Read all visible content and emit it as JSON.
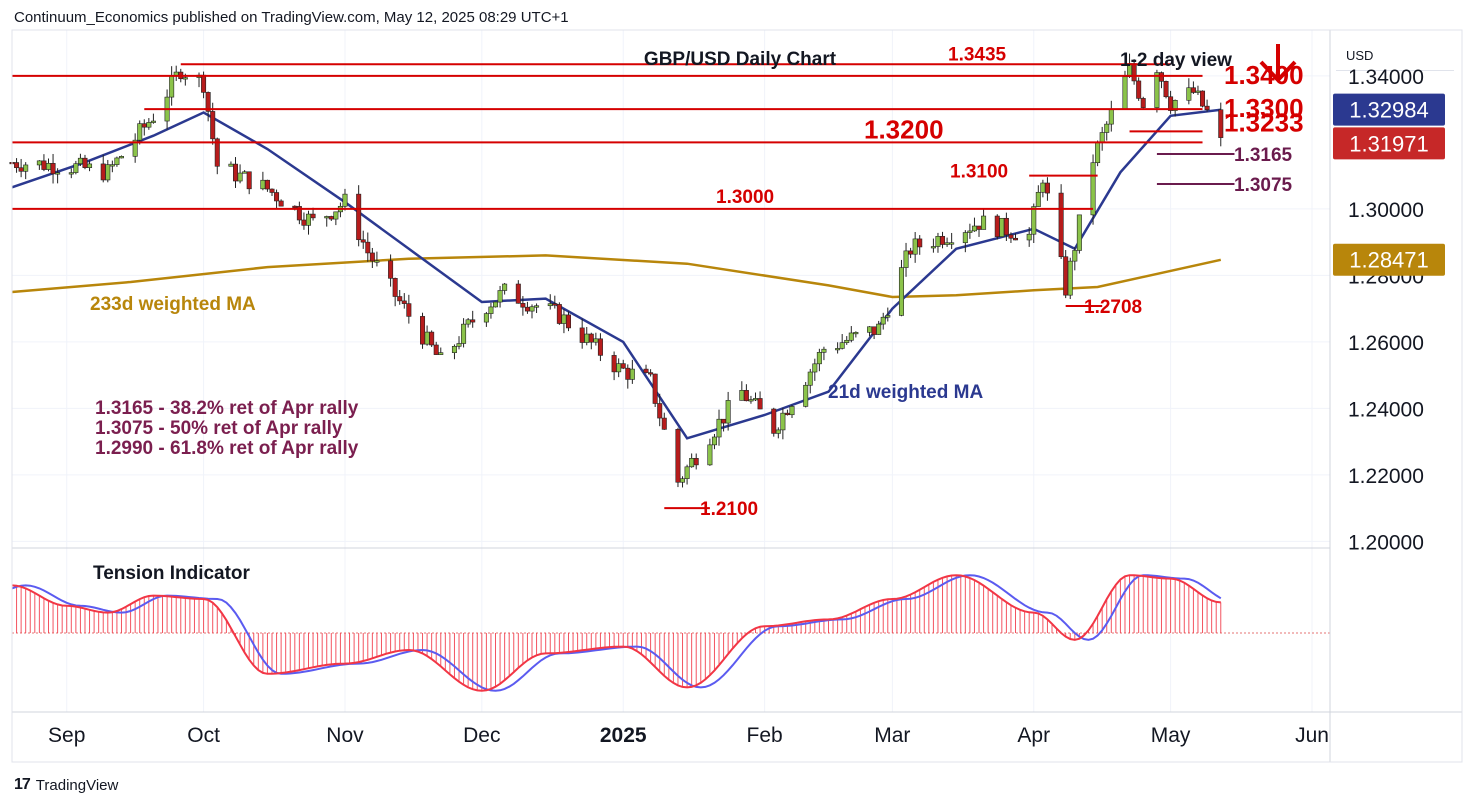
{
  "header": {
    "publisher": "Continuum_Economics published on TradingView.com, May 12, 2025 08:29 UTC+1"
  },
  "footer": {
    "brand": "TradingView"
  },
  "colors": {
    "up": "#4f7a2a",
    "down": "#b71c1c",
    "resistance": "#d50000",
    "ma21": "#2b3990",
    "ma233": "#b8860b",
    "annotation": "#7b1f4f",
    "tension_red": "#f23645",
    "tension_blue": "#5b5bf0"
  },
  "chart_data": {
    "type": "candlestick",
    "title": "GBP/USD Daily Chart",
    "subtitle": "1-2 day view",
    "direction_icon": "down-arrow-icon",
    "currency": "USD",
    "y_ticks": [
      "1.34000",
      "1.30000",
      "1.28000",
      "1.26000",
      "1.24000",
      "1.22000",
      "1.20000"
    ],
    "y_tick_values": [
      1.34,
      1.3,
      1.28,
      1.26,
      1.24,
      1.22,
      1.2
    ],
    "ylim": [
      1.198,
      1.352
    ],
    "x_ticks": [
      "Sep",
      "Oct",
      "Nov",
      "Dec",
      "2025",
      "Feb",
      "Mar",
      "Apr",
      "May",
      "Jun"
    ],
    "x_tick_dates": [
      "2024-09-01",
      "2024-10-01",
      "2024-11-01",
      "2024-12-01",
      "2025-01-01",
      "2025-02-01",
      "2025-03-01",
      "2025-04-01",
      "2025-05-01",
      "2025-06-01"
    ],
    "price_tags": [
      {
        "label": "1.32984",
        "value": 1.32984,
        "bg": "#2b3990"
      },
      {
        "label": "1.31971",
        "value": 1.31971,
        "bg": "#c62828"
      },
      {
        "label": "1.28471",
        "value": 1.28471,
        "bg": "#b8860b"
      }
    ],
    "levels": [
      {
        "label": "1.3435",
        "value": 1.3435,
        "from": "2024-09-26",
        "to": "2025-05-01"
      },
      {
        "label": "1.3400",
        "value": 1.34,
        "from": "2024-08-20",
        "to": "2025-05-08"
      },
      {
        "label": "1.3300",
        "value": 1.33,
        "from": "2024-09-18",
        "to": "2025-05-08"
      },
      {
        "label": "1.3233",
        "value": 1.3233,
        "from": "2025-04-22",
        "to": "2025-05-08"
      },
      {
        "label": "1.3200",
        "value": 1.32,
        "from": "2024-08-20",
        "to": "2025-05-08"
      },
      {
        "label": "1.3165",
        "value": 1.3165,
        "from": "2025-04-28",
        "to": "2025-05-15"
      },
      {
        "label": "1.3100",
        "value": 1.31,
        "from": "2025-03-31",
        "to": "2025-04-15"
      },
      {
        "label": "1.3075",
        "value": 1.3075,
        "from": "2025-04-28",
        "to": "2025-05-15"
      },
      {
        "label": "1.3000",
        "value": 1.3,
        "from": "2024-08-20",
        "to": "2025-04-14"
      },
      {
        "label": "1.2708",
        "value": 1.2708,
        "from": "2025-04-08",
        "to": "2025-04-16"
      },
      {
        "label": "1.2100",
        "value": 1.21,
        "from": "2025-01-10",
        "to": "2025-01-20"
      }
    ],
    "notes": [
      "1.3165 - 38.2% ret of Apr rally",
      "1.3075 - 50% ret of Apr rally",
      "1.2990 - 61.8% ret of Apr rally"
    ],
    "ma233_label": "233d weighted MA",
    "ma21_label": "21d weighted MA",
    "ma233": [
      [
        "2024-08-20",
        1.275
      ],
      [
        "2024-09-15",
        1.278
      ],
      [
        "2024-10-15",
        1.2825
      ],
      [
        "2024-11-15",
        1.285
      ],
      [
        "2024-12-15",
        1.286
      ],
      [
        "2025-01-15",
        1.2835
      ],
      [
        "2025-02-15",
        1.277
      ],
      [
        "2025-03-01",
        1.2735
      ],
      [
        "2025-03-15",
        1.274
      ],
      [
        "2025-04-01",
        1.2755
      ],
      [
        "2025-04-15",
        1.2765
      ],
      [
        "2025-05-12",
        1.2847
      ]
    ],
    "ma21": [
      [
        "2024-08-20",
        1.3065
      ],
      [
        "2024-09-05",
        1.314
      ],
      [
        "2024-09-20",
        1.322
      ],
      [
        "2024-10-01",
        1.329
      ],
      [
        "2024-10-15",
        1.318
      ],
      [
        "2024-11-01",
        1.302
      ],
      [
        "2024-11-15",
        1.288
      ],
      [
        "2024-12-01",
        1.272
      ],
      [
        "2024-12-15",
        1.273
      ],
      [
        "2025-01-01",
        1.26
      ],
      [
        "2025-01-15",
        1.231
      ],
      [
        "2025-02-01",
        1.238
      ],
      [
        "2025-02-15",
        1.245
      ],
      [
        "2025-03-01",
        1.27
      ],
      [
        "2025-03-15",
        1.288
      ],
      [
        "2025-04-01",
        1.294
      ],
      [
        "2025-04-10",
        1.288
      ],
      [
        "2025-04-20",
        1.311
      ],
      [
        "2025-05-01",
        1.328
      ],
      [
        "2025-05-12",
        1.3298
      ]
    ],
    "close_path": [
      [
        "2024-08-20",
        1.314
      ],
      [
        "2024-09-01",
        1.313
      ],
      [
        "2024-09-10",
        1.311
      ],
      [
        "2024-09-20",
        1.328
      ],
      [
        "2024-09-26",
        1.342
      ],
      [
        "2024-10-01",
        1.338
      ],
      [
        "2024-10-04",
        1.313
      ],
      [
        "2024-10-15",
        1.306
      ],
      [
        "2024-10-25",
        1.296
      ],
      [
        "2024-11-01",
        1.302
      ],
      [
        "2024-11-06",
        1.287
      ],
      [
        "2024-11-12",
        1.274
      ],
      [
        "2024-11-22",
        1.254
      ],
      [
        "2024-12-01",
        1.27
      ],
      [
        "2024-12-06",
        1.275
      ],
      [
        "2024-12-18",
        1.268
      ],
      [
        "2024-12-31",
        1.252
      ],
      [
        "2025-01-07",
        1.248
      ],
      [
        "2025-01-13",
        1.218
      ],
      [
        "2025-01-20",
        1.232
      ],
      [
        "2025-01-27",
        1.245
      ],
      [
        "2025-02-03",
        1.234
      ],
      [
        "2025-02-14",
        1.258
      ],
      [
        "2025-02-26",
        1.264
      ],
      [
        "2025-03-05",
        1.288
      ],
      [
        "2025-03-20",
        1.296
      ],
      [
        "2025-03-31",
        1.292
      ],
      [
        "2025-04-03",
        1.31
      ],
      [
        "2025-04-08",
        1.276
      ],
      [
        "2025-04-14",
        1.315
      ],
      [
        "2025-04-22",
        1.342
      ],
      [
        "2025-04-25",
        1.332
      ],
      [
        "2025-04-28",
        1.343
      ],
      [
        "2025-05-01",
        1.332
      ],
      [
        "2025-05-06",
        1.335
      ],
      [
        "2025-05-09",
        1.329
      ],
      [
        "2025-05-12",
        1.3197
      ]
    ],
    "low_labels": [
      {
        "label": "1.2708",
        "value": 1.2708
      },
      {
        "label": "1.2100",
        "value": 1.21
      }
    ],
    "tension_label": "Tension Indicator",
    "tension": [
      [
        "2024-08-20",
        0.7
      ],
      [
        "2024-09-01",
        0.4
      ],
      [
        "2024-09-10",
        0.3
      ],
      [
        "2024-09-20",
        0.55
      ],
      [
        "2024-10-01",
        0.5
      ],
      [
        "2024-10-15",
        -0.6
      ],
      [
        "2024-11-01",
        -0.45
      ],
      [
        "2024-11-15",
        -0.25
      ],
      [
        "2024-12-01",
        -0.85
      ],
      [
        "2024-12-15",
        -0.3
      ],
      [
        "2025-01-01",
        -0.2
      ],
      [
        "2025-01-15",
        -0.8
      ],
      [
        "2025-02-01",
        0.1
      ],
      [
        "2025-02-15",
        0.2
      ],
      [
        "2025-03-01",
        0.5
      ],
      [
        "2025-03-15",
        0.85
      ],
      [
        "2025-04-01",
        0.3
      ],
      [
        "2025-04-10",
        -0.1
      ],
      [
        "2025-04-22",
        0.85
      ],
      [
        "2025-05-01",
        0.8
      ],
      [
        "2025-05-12",
        0.45
      ]
    ]
  }
}
